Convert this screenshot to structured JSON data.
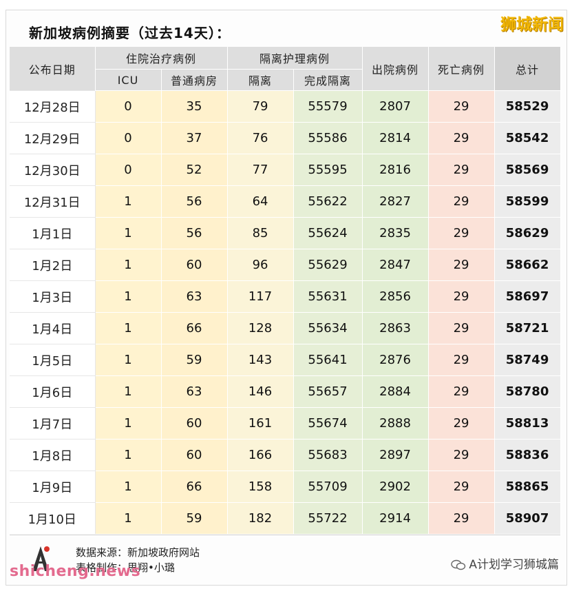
{
  "title": "新加坡病例摘要（过去14天）：",
  "brand": "狮城新闻",
  "headers": {
    "date": "公布日期",
    "hospital_group": "住院治疗病例",
    "icu": "ICU",
    "ward": "普通病房",
    "isolation_group": "隔离护理病例",
    "isolation": "隔离",
    "completed": "完成隔离",
    "discharged": "出院病例",
    "deaths": "死亡病例",
    "total": "总计"
  },
  "rows": [
    {
      "date": "12月28日",
      "icu": "0",
      "ward": "35",
      "iso": "79",
      "done": "55579",
      "dis": "2807",
      "death": "29",
      "total": "58529"
    },
    {
      "date": "12月29日",
      "icu": "0",
      "ward": "37",
      "iso": "76",
      "done": "55586",
      "dis": "2814",
      "death": "29",
      "total": "58542"
    },
    {
      "date": "12月30日",
      "icu": "0",
      "ward": "52",
      "iso": "77",
      "done": "55595",
      "dis": "2816",
      "death": "29",
      "total": "58569"
    },
    {
      "date": "12月31日",
      "icu": "1",
      "ward": "56",
      "iso": "64",
      "done": "55622",
      "dis": "2827",
      "death": "29",
      "total": "58599"
    },
    {
      "date": "1月1日",
      "icu": "1",
      "ward": "56",
      "iso": "85",
      "done": "55624",
      "dis": "2835",
      "death": "29",
      "total": "58629"
    },
    {
      "date": "1月2日",
      "icu": "1",
      "ward": "60",
      "iso": "96",
      "done": "55629",
      "dis": "2847",
      "death": "29",
      "total": "58662"
    },
    {
      "date": "1月3日",
      "icu": "1",
      "ward": "63",
      "iso": "117",
      "done": "55631",
      "dis": "2856",
      "death": "29",
      "total": "58697"
    },
    {
      "date": "1月4日",
      "icu": "1",
      "ward": "66",
      "iso": "128",
      "done": "55634",
      "dis": "2863",
      "death": "29",
      "total": "58721"
    },
    {
      "date": "1月5日",
      "icu": "1",
      "ward": "59",
      "iso": "143",
      "done": "55641",
      "dis": "2876",
      "death": "29",
      "total": "58749"
    },
    {
      "date": "1月6日",
      "icu": "1",
      "ward": "63",
      "iso": "146",
      "done": "55657",
      "dis": "2884",
      "death": "29",
      "total": "58780"
    },
    {
      "date": "1月7日",
      "icu": "1",
      "ward": "60",
      "iso": "161",
      "done": "55674",
      "dis": "2888",
      "death": "29",
      "total": "58813"
    },
    {
      "date": "1月8日",
      "icu": "1",
      "ward": "60",
      "iso": "166",
      "done": "55683",
      "dis": "2897",
      "death": "29",
      "total": "58836"
    },
    {
      "date": "1月9日",
      "icu": "1",
      "ward": "66",
      "iso": "158",
      "done": "55709",
      "dis": "2902",
      "death": "29",
      "total": "58865"
    },
    {
      "date": "1月10日",
      "icu": "1",
      "ward": "59",
      "iso": "182",
      "done": "55722",
      "dis": "2914",
      "death": "29",
      "total": "58907"
    }
  ],
  "footer": {
    "source": "数据来源：新加坡政府网站",
    "made_by": "表格制作：思翔•小璐",
    "watermark_left": "shicheng.news",
    "watermark_right": "A计划学习狮城篇"
  }
}
